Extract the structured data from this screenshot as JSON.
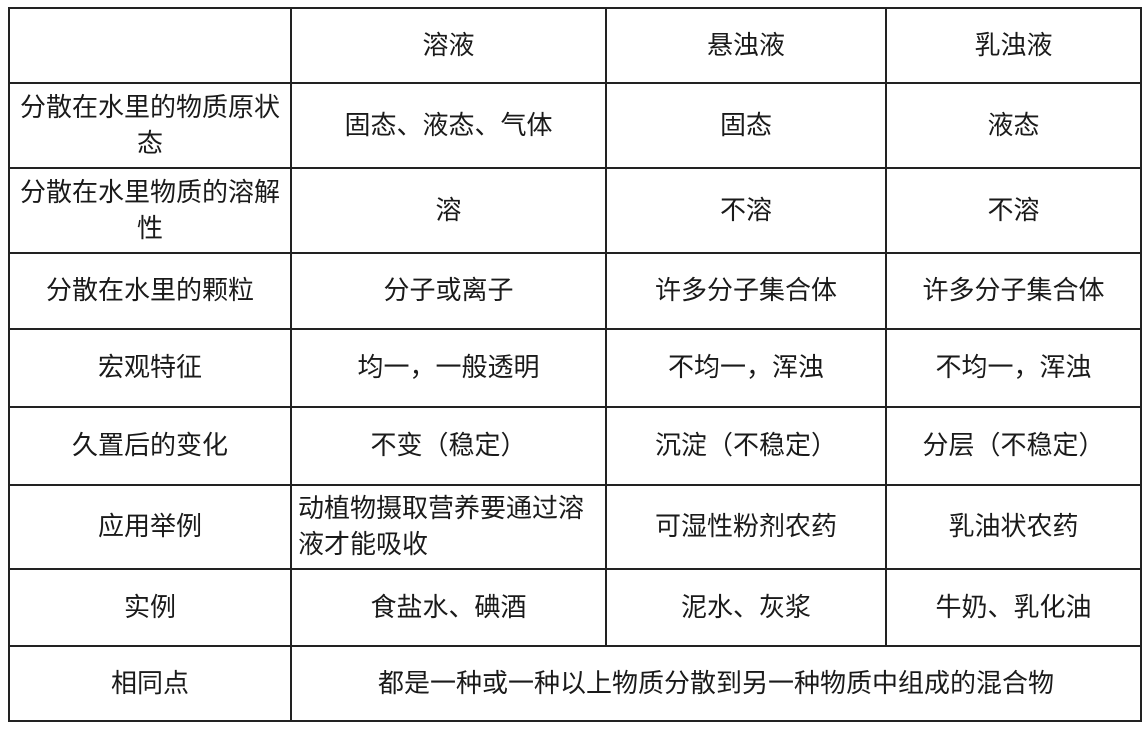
{
  "table": {
    "headers": [
      "",
      "溶液",
      "悬浊液",
      "乳浊液"
    ],
    "rows": [
      {
        "label": "分散在水里的物质原状态",
        "cells": [
          "固态、液态、气体",
          "固态",
          "液态"
        ]
      },
      {
        "label": "分散在水里物质的溶解性",
        "cells": [
          "溶",
          "不溶",
          "不溶"
        ]
      },
      {
        "label": "分散在水里的颗粒",
        "cells": [
          "分子或离子",
          "许多分子集合体",
          "许多分子集合体"
        ]
      },
      {
        "label": "宏观特征",
        "cells": [
          "均一，一般透明",
          "不均一，浑浊",
          "不均一，浑浊"
        ]
      },
      {
        "label": "久置后的变化",
        "cells": [
          "不变（稳定）",
          "沉淀（不稳定）",
          "分层（不稳定）"
        ]
      },
      {
        "label": "应用举例",
        "cells": [
          "动植物摄取营养要通过溶液才能吸收",
          "可湿性粉剂农药",
          "乳油状农药"
        ]
      },
      {
        "label": "实例",
        "cells": [
          "食盐水、碘酒",
          "泥水、灰浆",
          "牛奶、乳化油"
        ]
      }
    ],
    "common": {
      "label": "相同点",
      "value": "都是一种或一种以上物质分散到另一种物质中组成的混合物"
    }
  }
}
